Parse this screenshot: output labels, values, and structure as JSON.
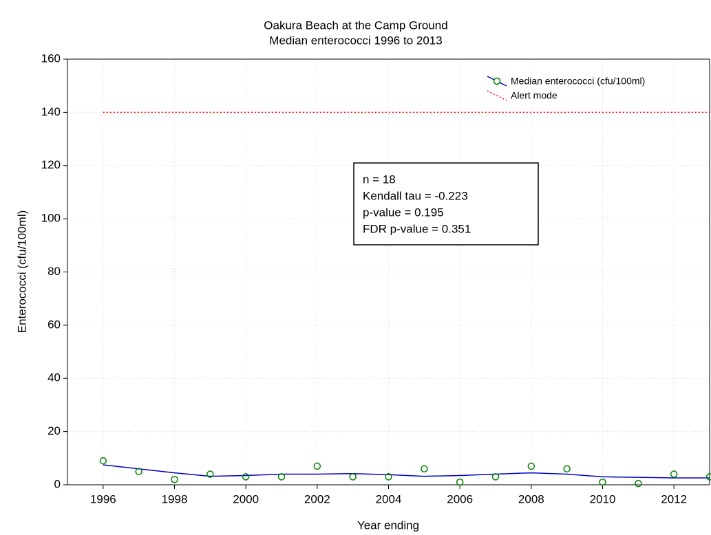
{
  "chart_data": {
    "type": "scatter",
    "title": [
      "Oakura Beach at the Camp Ground",
      "Median enterococci 1996 to 2013"
    ],
    "x_label": "Year ending",
    "y_label": "Enterococci (cfu/100ml)",
    "x": [
      1996,
      1997,
      1998,
      1999,
      2000,
      2001,
      2002,
      2003,
      2004,
      2005,
      2006,
      2007,
      2008,
      2009,
      2010,
      2011,
      2012,
      2013
    ],
    "series": [
      {
        "name": "Median enterococci (cfu/100ml)",
        "color": "#008000",
        "line_color": "#0000cc",
        "values": [
          9,
          5,
          2,
          4,
          3,
          3,
          7,
          3,
          3,
          6,
          1,
          3,
          7,
          6,
          1,
          0.5,
          4,
          3
        ],
        "trend": [
          7.5,
          6,
          4.5,
          3.2,
          3.5,
          4,
          4,
          4.2,
          3.8,
          3.2,
          3.5,
          4,
          4.5,
          4,
          3,
          2.8,
          2.6,
          2.6
        ]
      }
    ],
    "reference_lines": [
      {
        "name": "Alert mode",
        "value": 140,
        "color": "#ff0000"
      }
    ],
    "annotation": [
      "n = 18",
      "Kendall tau = -0.223",
      "p-value = 0.195",
      "FDR p-value = 0.351"
    ],
    "xlim": [
      1995,
      2013
    ],
    "xticks": [
      1996,
      1998,
      2000,
      2002,
      2004,
      2006,
      2008,
      2010,
      2012
    ],
    "ylim": [
      0,
      160
    ],
    "yticks": [
      0,
      20,
      40,
      60,
      80,
      100,
      120,
      140,
      160
    ],
    "grid": true,
    "legend": "upper right"
  }
}
